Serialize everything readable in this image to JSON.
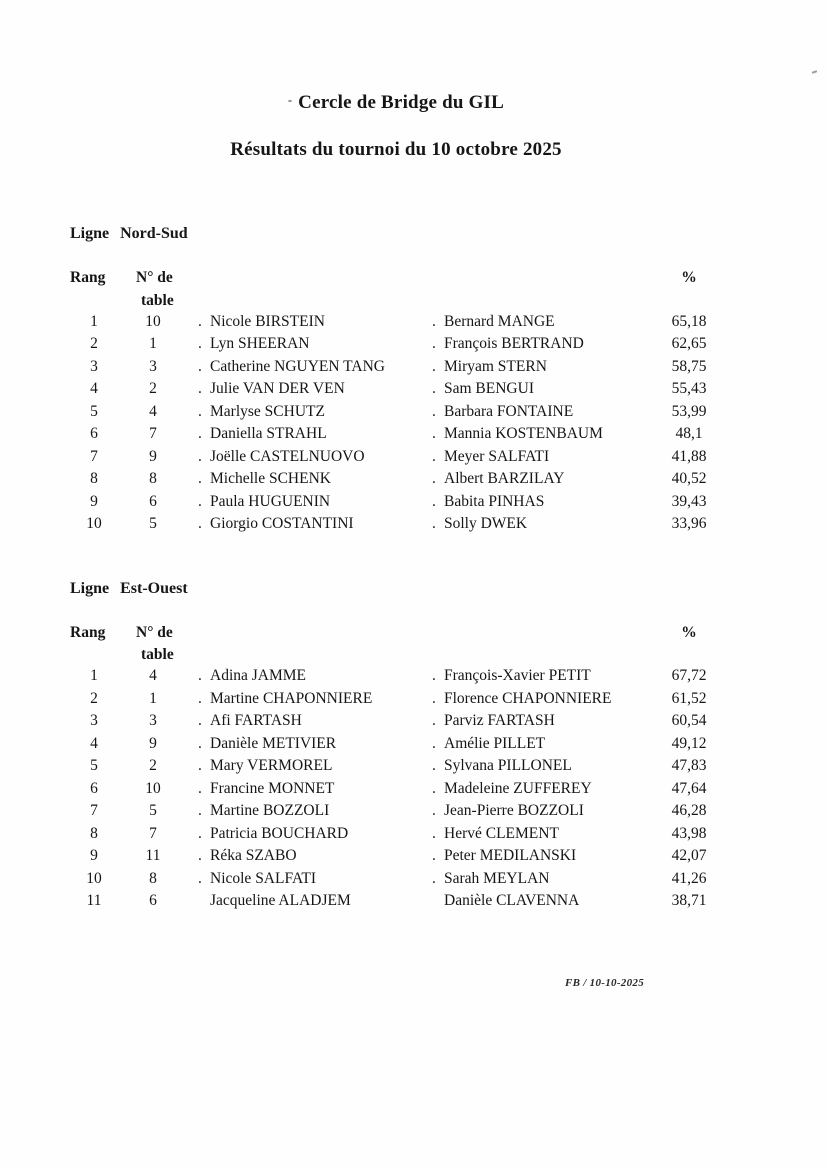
{
  "page": {
    "title_mark": "-",
    "title": "Cercle de Bridge du GIL",
    "subtitle": "Résultats du tournoi du 10 octobre 2025",
    "footer": "FB / 10-10-2025"
  },
  "table_headers": {
    "rank": "Rang",
    "table_line1": "N° de",
    "table_line2": "table",
    "percent": "%"
  },
  "sections": [
    {
      "label_word": "Ligne",
      "label_name": "Nord-Sud",
      "rows": [
        {
          "rank": "1",
          "table": "10",
          "p1": "Nicole BIRSTEIN",
          "p2": "Bernard MANGE",
          "pct": "65,18",
          "dot": true
        },
        {
          "rank": "2",
          "table": "1",
          "p1": "Lyn SHEERAN",
          "p2": "François BERTRAND",
          "pct": "62,65",
          "dot": true
        },
        {
          "rank": "3",
          "table": "3",
          "p1": "Catherine NGUYEN TANG",
          "p2": "Miryam STERN",
          "pct": "58,75",
          "dot": true
        },
        {
          "rank": "4",
          "table": "2",
          "p1": "Julie VAN DER VEN",
          "p2": "Sam BENGUI",
          "pct": "55,43",
          "dot": true
        },
        {
          "rank": "5",
          "table": "4",
          "p1": "Marlyse SCHUTZ",
          "p2": "Barbara FONTAINE",
          "pct": "53,99",
          "dot": true
        },
        {
          "rank": "6",
          "table": "7",
          "p1": "Daniella STRAHL",
          "p2": "Mannia KOSTENBAUM",
          "pct": "48,1",
          "dot": true
        },
        {
          "rank": "7",
          "table": "9",
          "p1": "Joëlle CASTELNUOVO",
          "p2": "Meyer SALFATI",
          "pct": "41,88",
          "dot": true
        },
        {
          "rank": "8",
          "table": "8",
          "p1": "Michelle SCHENK",
          "p2": "Albert BARZILAY",
          "pct": "40,52",
          "dot": true
        },
        {
          "rank": "9",
          "table": "6",
          "p1": "Paula HUGUENIN",
          "p2": "Babita PINHAS",
          "pct": "39,43",
          "dot": true
        },
        {
          "rank": "10",
          "table": "5",
          "p1": "Giorgio COSTANTINI",
          "p2": "Solly DWEK",
          "pct": "33,96",
          "dot": true
        }
      ]
    },
    {
      "label_word": "Ligne",
      "label_name": "Est-Ouest",
      "rows": [
        {
          "rank": "1",
          "table": "4",
          "p1": "Adina JAMME",
          "p2": "François-Xavier PETIT",
          "pct": "67,72",
          "dot": true
        },
        {
          "rank": "2",
          "table": "1",
          "p1": "Martine CHAPONNIERE",
          "p2": "Florence CHAPONNIERE",
          "pct": "61,52",
          "dot": true
        },
        {
          "rank": "3",
          "table": "3",
          "p1": "Afi FARTASH",
          "p2": "Parviz FARTASH",
          "pct": "60,54",
          "dot": true
        },
        {
          "rank": "4",
          "table": "9",
          "p1": "Danièle METIVIER",
          "p2": "Amélie PILLET",
          "pct": "49,12",
          "dot": true
        },
        {
          "rank": "5",
          "table": "2",
          "p1": "Mary VERMOREL",
          "p2": "Sylvana PILLONEL",
          "pct": "47,83",
          "dot": true
        },
        {
          "rank": "6",
          "table": "10",
          "p1": "Francine MONNET",
          "p2": "Madeleine ZUFFEREY",
          "pct": "47,64",
          "dot": true
        },
        {
          "rank": "7",
          "table": "5",
          "p1": "Martine BOZZOLI",
          "p2": "Jean-Pierre BOZZOLI",
          "pct": "46,28",
          "dot": true
        },
        {
          "rank": "8",
          "table": "7",
          "p1": "Patricia BOUCHARD",
          "p2": "Hervé CLEMENT",
          "pct": "43,98",
          "dot": true
        },
        {
          "rank": "9",
          "table": "11",
          "p1": "Réka SZABO",
          "p2": "Peter MEDILANSKI",
          "pct": "42,07",
          "dot": true
        },
        {
          "rank": "10",
          "table": "8",
          "p1": "Nicole SALFATI",
          "p2": "Sarah MEYLAN",
          "pct": "41,26",
          "dot": true
        },
        {
          "rank": "11",
          "table": "6",
          "p1": "Jacqueline ALADJEM",
          "p2": "Danièle CLAVENNA",
          "pct": "38,71",
          "dot": false
        }
      ]
    }
  ]
}
